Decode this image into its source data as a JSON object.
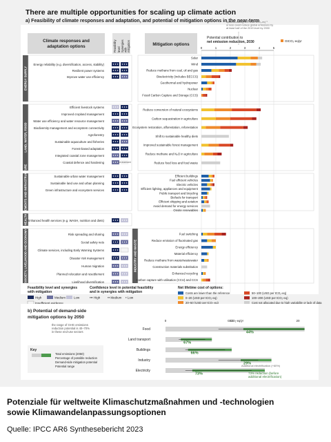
{
  "figure": {
    "title": "There are multiple opportunities for scaling up climate action",
    "subtitle": "a) Feasibility of climate responses and adaptation, and potential of mitigation options in the near-term",
    "head_adapt": [
      "Climate responses and",
      "adaptation options"
    ],
    "head_feas": [
      "Feasibility",
      "level"
    ],
    "head_syn": [
      "Synergies",
      "with",
      "mitigation"
    ],
    "head_mit": "Mitigation options",
    "axis_title": [
      "Potential contribution to",
      "net emission reduction, 2030"
    ],
    "axis_unit": "GtCO₂-eq/yr",
    "axis_ticks": [
      "0",
      "1",
      "2",
      "3",
      "4",
      "5"
    ],
    "callout": [
      "options costing 100 USD tCO₂-eq⁻¹",
      "or less could reduce global emissions by",
      "at least half of the 2019 level by 2030"
    ],
    "not_assessed": "not assessed",
    "energy_sector_label": "ENERGY SUPPLY"
  },
  "sectors": [
    {
      "label": "ENERGY SUPPLY",
      "color": "#5a5a5a",
      "adapt": [
        "Energy reliability (e.g. diversification, access, stability)",
        "Resilient power systems",
        "Improve water use efficiency"
      ],
      "mit": [
        "Solar",
        "Wind",
        "Reduce methane from coal, oil and gas",
        "Bioelectricity (includes BECCS)",
        "Geothermal and hydropower",
        "Nuclear",
        "Fossil Carbon Capture and Storage (CCS)"
      ]
    },
    {
      "label": "LAND, WATER, FOOD",
      "color": "#5a5a5a",
      "adapt": [
        "Efficient livestock systems",
        "Improved cropland management",
        "Water use efficiency and water resource management",
        "Biodiversity management and ecosystem connectivity",
        "Agroforestry",
        "Sustainable aquaculture and fisheries",
        "Forest-based adaptation",
        "Integrated coastal zone management",
        "Coastal defence and hardening"
      ],
      "mit": [
        "Reduce conversion of natural ecosystems",
        "Carbon sequestration in agriculture",
        "Ecosystem restoration, afforestation, reforestation",
        "Shift to sustainable healthy diets",
        "Improved sustainable forest management",
        "Reduce methane and N₂O in agriculture",
        "Reduce food loss and food waste"
      ]
    },
    {
      "label": "SETTLEMENTS AND INFRASTRUCTURE",
      "color": "#5a5a5a",
      "adapt": [
        "Sustainable urban water management",
        "Sustainable land use and urban planning",
        "Green infrastructure and ecosystem services"
      ],
      "mit": [
        "Efficient buildings",
        "Fuel efficient vehicles",
        "Electric vehicles",
        "Efficient lighting, appliances and equipment",
        "Public transport and bicycling",
        "Biofuels for transport",
        "Efficient shipping and aviation",
        "Avoid demand for energy services",
        "Onsite renewables"
      ]
    },
    {
      "label": "HEALTH",
      "color": "#5a5a5a",
      "adapt": [
        "Enhanced health services (e.g. WASH, nutrition and diets)"
      ],
      "mit": []
    },
    {
      "label": "SOCIETY, LIVELIHOOD AND ECONOMY",
      "color": "#5a5a5a",
      "adapt": [
        "Risk spreading and sharing",
        "Social safety nets",
        "Climate services, including Early Warning Systems",
        "Disaster risk management",
        "Human migration",
        "Planned relocation and resettlement",
        "Livelihood diversification"
      ],
      "mit": []
    },
    {
      "label": "INDUSTRY AND WASTE",
      "color": "#5a5a5a",
      "adapt": [],
      "mit": [
        "Fuel switching",
        "Reduce emission of fluorinated gas",
        "Energy efficiency",
        "Material efficiency",
        "Reduce methane from waste/wastewater",
        "Construction materials substitution",
        "Enhanced recycling",
        "Carbon capture with utilisation (CCU) and CCS"
      ]
    }
  ],
  "legend": {
    "feas_title": [
      "Feasibility level and synergies",
      "with mitigation"
    ],
    "feas_items": [
      "High",
      "Medium",
      "Low"
    ],
    "insufficient": "Insufficient evidence",
    "conf_title": [
      "Confidence level in potential feasibility",
      "and in synergies with mitigation"
    ],
    "conf_items": [
      "High",
      "Medium",
      "Low"
    ],
    "cost_title": "Net lifetime cost of options:",
    "cost_items": [
      "Costs are lower than the reference",
      "0–20 (USD per tCO₂-eq)",
      "20–50 (USD per tCO₂-eq)",
      "50–100 (USD per tCO₂-eq)",
      "100–200 (USD per tCO₂-eq)",
      "Cost not allocated due to high variability or lack of data"
    ]
  },
  "panel_b": {
    "title": [
      "b) Potential of demand-side",
      "mitigation options by 2050"
    ],
    "note": [
      "the range of GHG emissions",
      "reduction potential is 40–70%",
      "in these end-use sectors"
    ],
    "rows": [
      "Food",
      "Land transport",
      "Buildings",
      "Industry",
      "Electricity"
    ],
    "values": [
      "44%",
      "67%",
      "66%",
      "29%",
      "73%"
    ],
    "unit": "GtCO₂-eq/yr",
    "unit2": "GtCO₂-eq/yr",
    "ticks": [
      "0",
      "10",
      "20"
    ],
    "elec_note": [
      "73% reduction (before",
      "additional electrification)"
    ],
    "elec_extra": "Additional electrification (+60%)",
    "key_title": "Key",
    "key_items": [
      "Total emissions (2050)",
      "Percentage of possible reduction",
      "Demand-side mitigation potential",
      "Potential range"
    ],
    "key_value": "% "
  },
  "chart_data": {
    "type": "bar",
    "title": "There are multiple opportunities for scaling up climate action",
    "subtitle": "a) Feasibility of climate responses and adaptation, and potential of mitigation options in the near-term",
    "xlabel": "Potential contribution to net emission reduction, 2030",
    "unit": "GtCO₂-eq/yr",
    "xlim": [
      0,
      5
    ],
    "cost_colors": [
      "#1f5fa8",
      "#f2c230",
      "#ef8a2c",
      "#d94a27",
      "#a8221e",
      "#cfcfcf"
    ],
    "mitigation": [
      {
        "sector": 0,
        "option": "Solar",
        "segments": [
          2.5,
          0.9,
          0.5,
          0,
          0,
          0.3
        ]
      },
      {
        "sector": 0,
        "option": "Wind",
        "segments": [
          2.4,
          1.0,
          0.4,
          0,
          0,
          0.3
        ]
      },
      {
        "sector": 0,
        "option": "Reduce methane from coal, oil and gas",
        "segments": [
          0.7,
          0.5,
          0.4,
          0.3,
          0.2,
          0
        ]
      },
      {
        "sector": 0,
        "option": "Bioelectricity (includes BECCS)",
        "segments": [
          0,
          0.3,
          0.4,
          0.5,
          0.1,
          0
        ]
      },
      {
        "sector": 0,
        "option": "Geothermal and hydropower",
        "segments": [
          0.4,
          0.3,
          0.1,
          0.1,
          0,
          0
        ]
      },
      {
        "sector": 0,
        "option": "Nuclear",
        "segments": [
          0.1,
          0.2,
          0.2,
          0.2,
          0,
          0
        ]
      },
      {
        "sector": 0,
        "option": "Fossil Carbon Capture and Storage (CCS)",
        "segments": [
          0,
          0,
          0.1,
          0.2,
          0.1,
          0
        ]
      },
      {
        "sector": 1,
        "option": "Reduce conversion of natural ecosystems",
        "segments": [
          0,
          0.9,
          1.2,
          1.7,
          0.3,
          0
        ]
      },
      {
        "sector": 1,
        "option": "Carbon sequestration in agriculture",
        "segments": [
          0,
          1.0,
          1.0,
          1.5,
          0.3,
          0
        ]
      },
      {
        "sector": 1,
        "option": "Ecosystem restoration, afforestation, reforestation",
        "segments": [
          0,
          0.3,
          1.0,
          1.6,
          0.3,
          0
        ]
      },
      {
        "sector": 1,
        "option": "Shift to sustainable healthy diets",
        "segments": [
          0,
          0,
          0,
          0,
          0,
          1.9
        ]
      },
      {
        "sector": 1,
        "option": "Improved sustainable forest management",
        "segments": [
          0,
          0.5,
          0.7,
          0.8,
          0.2,
          0
        ]
      },
      {
        "sector": 1,
        "option": "Reduce methane and N₂O in agriculture",
        "segments": [
          0,
          0.2,
          0.6,
          0.3,
          0.3,
          0
        ]
      },
      {
        "sector": 1,
        "option": "Reduce food loss and food waste",
        "segments": [
          0,
          0,
          0,
          0,
          0,
          1.3
        ]
      },
      {
        "sector": 2,
        "option": "Efficient buildings",
        "segments": [
          0.5,
          0.2,
          0.1,
          0.1,
          0,
          0
        ]
      },
      {
        "sector": 2,
        "option": "Fuel efficient vehicles",
        "segments": [
          0.6,
          0.1,
          0.1,
          0,
          0,
          0
        ]
      },
      {
        "sector": 2,
        "option": "Electric vehicles",
        "segments": [
          0.4,
          0.2,
          0.1,
          0.1,
          0.1,
          0
        ]
      },
      {
        "sector": 2,
        "option": "Efficient lighting, appliances and equipment",
        "segments": [
          0.6,
          0.1,
          0,
          0,
          0,
          0
        ]
      },
      {
        "sector": 2,
        "option": "Public transport and bicycling",
        "segments": [
          0.4,
          0.1,
          0,
          0,
          0,
          0
        ]
      },
      {
        "sector": 2,
        "option": "Biofuels for transport",
        "segments": [
          0.1,
          0.1,
          0.1,
          0.1,
          0,
          0
        ]
      },
      {
        "sector": 2,
        "option": "Efficient shipping and aviation",
        "segments": [
          0.2,
          0.1,
          0.1,
          0.1,
          0,
          0
        ]
      },
      {
        "sector": 2,
        "option": "Avoid demand for energy services",
        "segments": [
          0,
          0,
          0,
          0,
          0,
          0.6
        ]
      },
      {
        "sector": 2,
        "option": "Onsite renewables",
        "segments": [
          0.1,
          0.1,
          0.1,
          0,
          0,
          0
        ]
      },
      {
        "sector": 5,
        "option": "Fuel switching",
        "segments": [
          0.1,
          0.3,
          0.5,
          0.5,
          0.3,
          0
        ]
      },
      {
        "sector": 5,
        "option": "Reduce emission of fluorinated gas",
        "segments": [
          0.4,
          0.3,
          0.3,
          0,
          0,
          0
        ]
      },
      {
        "sector": 5,
        "option": "Energy efficiency",
        "segments": [
          0.8,
          0.2,
          0,
          0,
          0,
          0
        ]
      },
      {
        "sector": 5,
        "option": "Material efficiency",
        "segments": [
          0.4,
          0.1,
          0,
          0,
          0,
          0
        ]
      },
      {
        "sector": 5,
        "option": "Reduce methane from waste/wastewater",
        "segments": [
          0.2,
          0.2,
          0.1,
          0,
          0,
          0
        ]
      },
      {
        "sector": 5,
        "option": "Construction materials substitution",
        "segments": [
          0,
          0,
          0,
          0,
          0,
          0.4
        ]
      },
      {
        "sector": 5,
        "option": "Enhanced recycling",
        "segments": [
          0.1,
          0.1,
          0.1,
          0,
          0,
          0
        ]
      },
      {
        "sector": 5,
        "option": "Carbon capture with utilisation (CCU) and CCS",
        "segments": [
          0,
          0.1,
          0.2,
          0.2,
          0.1,
          0
        ]
      }
    ],
    "adaptation": [
      {
        "sector": 0,
        "feas": [
          "H",
          "H",
          "H",
          "M"
        ],
        "syn": [
          "H",
          "H",
          "H",
          "H"
        ]
      },
      {
        "sector": 0,
        "feas": [
          "H",
          "H",
          "H",
          "M"
        ],
        "syn": [
          "H",
          "H",
          "H",
          "H"
        ]
      },
      {
        "sector": 0,
        "feas": [
          "H",
          "H",
          "M",
          "M"
        ],
        "syn": [
          "M",
          "M",
          "L",
          "L"
        ]
      },
      {
        "sector": 1,
        "feas": [
          "L",
          "L",
          "M",
          "M"
        ],
        "syn": [
          "H",
          "H",
          "H",
          "H"
        ]
      },
      {
        "sector": 1,
        "feas": [
          "H",
          "M",
          "H",
          "M"
        ],
        "syn": [
          "H",
          "H",
          "H",
          "H"
        ]
      },
      {
        "sector": 1,
        "feas": [
          "M",
          "M",
          "H",
          "M"
        ],
        "syn": [
          "M",
          "M",
          "L",
          "M"
        ]
      },
      {
        "sector": 1,
        "feas": [
          "H",
          "M",
          "M",
          "M"
        ],
        "syn": [
          "H",
          "H",
          "H",
          "H"
        ]
      },
      {
        "sector": 1,
        "feas": [
          "H",
          "M",
          "M",
          "M"
        ],
        "syn": [
          "H",
          "H",
          "H",
          "M"
        ]
      },
      {
        "sector": 1,
        "feas": [
          "H",
          "M",
          "M",
          "M"
        ],
        "syn": [
          "M",
          "L",
          "M",
          "L"
        ]
      },
      {
        "sector": 1,
        "feas": [
          "H",
          "M",
          "H",
          "M"
        ],
        "syn": [
          "H",
          "H",
          "H",
          "H"
        ]
      },
      {
        "sector": 1,
        "feas": [
          "M",
          "M",
          "H",
          "M"
        ],
        "syn": [
          "H",
          "H",
          "H",
          "M"
        ]
      },
      {
        "sector": 1,
        "feas": [
          "M",
          "H",
          "M",
          "M"
        ],
        "syn": [
          "NA",
          "NA",
          "NA",
          "NA"
        ]
      },
      {
        "sector": 2,
        "feas": [
          "H",
          "H",
          "M",
          "M"
        ],
        "syn": [
          "H",
          "M",
          "M",
          "M"
        ]
      },
      {
        "sector": 2,
        "feas": [
          "H",
          "M",
          "M",
          "M"
        ],
        "syn": [
          "H",
          "H",
          "H",
          "M"
        ]
      },
      {
        "sector": 2,
        "feas": [
          "H",
          "M",
          "H",
          "M"
        ],
        "syn": [
          "H",
          "H",
          "H",
          "H"
        ]
      },
      {
        "sector": 3,
        "feas": [
          "H",
          "M",
          "H",
          "M"
        ],
        "syn": [
          "L",
          "L",
          "L",
          "M"
        ]
      },
      {
        "sector": 4,
        "feas": [
          "M",
          "M",
          "M",
          "M"
        ],
        "syn": [
          "L",
          "L",
          "L",
          "L"
        ]
      },
      {
        "sector": 4,
        "feas": [
          "H",
          "M",
          "M",
          "M"
        ],
        "syn": [
          "M",
          "M",
          "M",
          "M"
        ]
      },
      {
        "sector": 4,
        "feas": [
          "H",
          "M",
          "H",
          "M"
        ],
        "syn": [
          "IE",
          "IE",
          "IE",
          "IE"
        ]
      },
      {
        "sector": 4,
        "feas": [
          "H",
          "H",
          "M",
          "M"
        ],
        "syn": [
          "M",
          "M",
          "L",
          "L"
        ]
      },
      {
        "sector": 4,
        "feas": [
          "M",
          "M",
          "M",
          "M"
        ],
        "syn": [
          "L",
          "L",
          "L",
          "L"
        ]
      },
      {
        "sector": 4,
        "feas": [
          "M",
          "M",
          "L",
          "L"
        ],
        "syn": [
          "L",
          "L",
          "L",
          "L"
        ]
      },
      {
        "sector": 4,
        "feas": [
          "M",
          "M",
          "M",
          "M"
        ],
        "syn": [
          "L",
          "M",
          "L",
          "L"
        ]
      }
    ],
    "demand_side": [
      {
        "sector": "Food",
        "total": 21,
        "reduction_pct": 44,
        "range": [
          8,
          21
        ]
      },
      {
        "sector": "Land transport",
        "total": 7,
        "reduction_pct": 67,
        "range": [
          2,
          6
        ]
      },
      {
        "sector": "Buildings",
        "total": 10,
        "reduction_pct": 66,
        "range": [
          3,
          9
        ]
      },
      {
        "sector": "Industry",
        "total": 16,
        "reduction_pct": 29,
        "range": [
          8,
          14
        ]
      },
      {
        "sector": "Electricity",
        "total": 15,
        "reduction_pct": 73,
        "range": [
          3,
          13
        ]
      }
    ],
    "demand_xlim": [
      0,
      25
    ]
  },
  "caption": [
    "Potenziale für weltweite Klimaschutzmaßnahmen und -technologien",
    "sowie Klimawandelanpassungsoptionen"
  ],
  "source": "Quelle: IPCC AR6 Synthesebericht 2023"
}
